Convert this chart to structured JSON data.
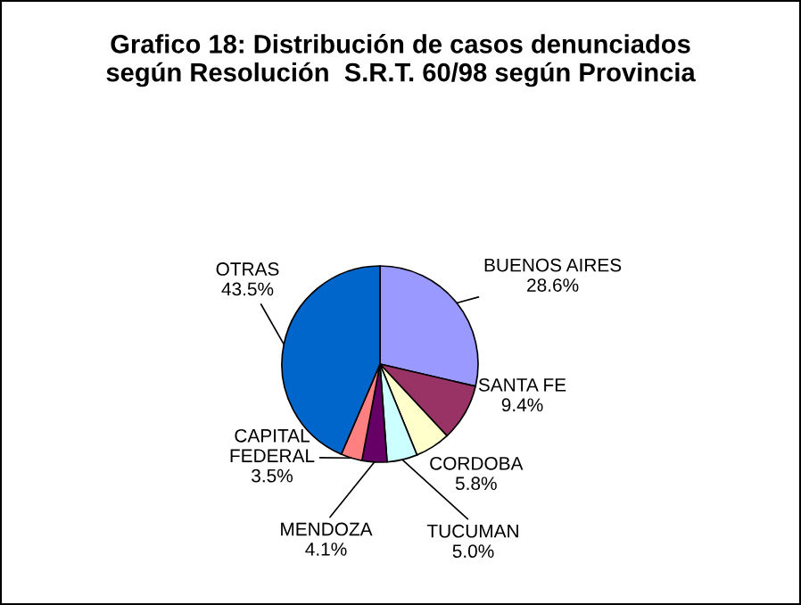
{
  "chart_data": {
    "type": "pie",
    "title": "Grafico 18: Distribución de casos denunciados\nsegún Resolución  S.R.T. 60/98 según Provincia",
    "categories": [
      "BUENOS AIRES",
      "SANTA FE",
      "CORDOBA",
      "TUCUMAN",
      "MENDOZA",
      "CAPITAL\nFEDERAL",
      "OTRAS"
    ],
    "values": [
      28.6,
      9.4,
      5.8,
      5.0,
      4.1,
      3.5,
      43.5
    ],
    "value_labels": [
      "28.6%",
      "9.4%",
      "5.8%",
      "5.0%",
      "4.1%",
      "3.5%",
      "43.5%"
    ],
    "colors": [
      "#9999ff",
      "#993366",
      "#ffffcc",
      "#ccffff",
      "#660066",
      "#ff8080",
      "#0066cc"
    ]
  }
}
